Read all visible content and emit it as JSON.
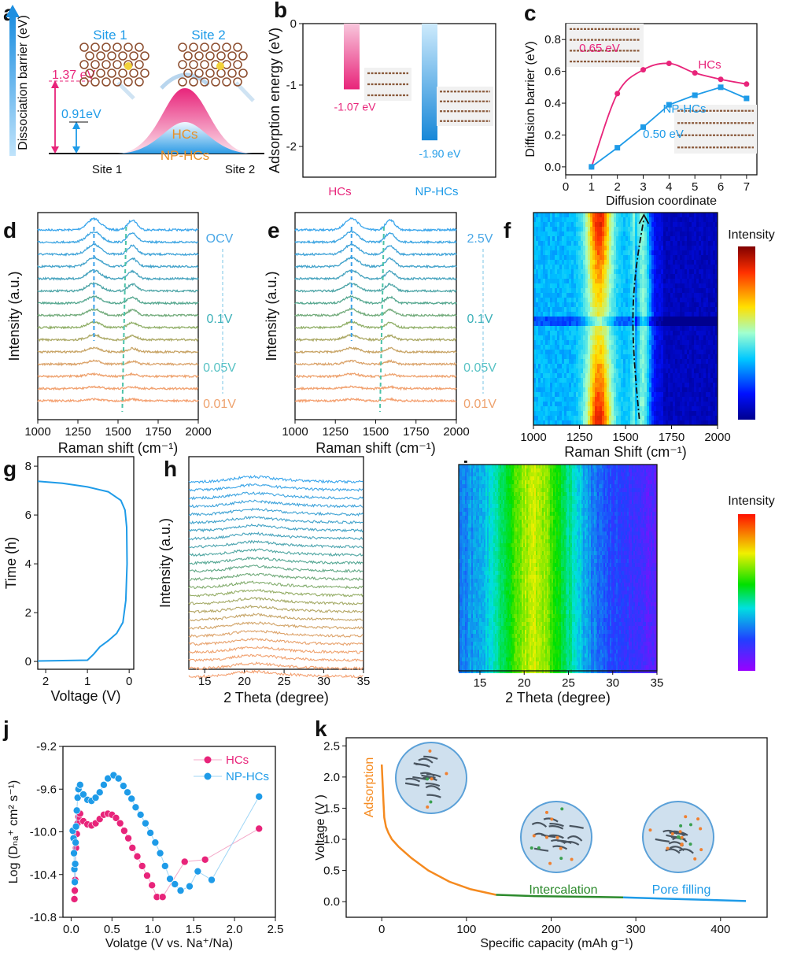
{
  "panel_labels": {
    "a": "a",
    "b": "b",
    "c": "c",
    "d": "d",
    "e": "e",
    "f": "f",
    "g": "g",
    "h": "h",
    "i": "i",
    "j": "j",
    "k": "k"
  },
  "colors": {
    "pink": "#e8247a",
    "blue": "#1e9be8",
    "orange": "#f58a1f",
    "green": "#2c8a2c",
    "hump_text": "#e8912a"
  },
  "panel_a": {
    "ylabel": "Dissociation barrier (eV)",
    "site1_top": "Site 1",
    "site2_top": "Site 2",
    "site1_bottom": "Site 1",
    "site2_bottom": "Site 2",
    "barrier_hcs": "1.37 eV",
    "barrier_nphcs": "0.91eV",
    "hump_hcs": "HCs",
    "hump_nphcs": "NP-HCs"
  },
  "chart_data": [
    {
      "panel": "b",
      "type": "bar",
      "categories": [
        "HCs",
        "NP-HCs"
      ],
      "values": [
        -1.07,
        -1.9
      ],
      "data_labels": [
        "-1.07 eV",
        "-1.90 eV"
      ],
      "ylabel": "Adsorption energy (eV)",
      "ylim": [
        -2.5,
        0
      ],
      "yticks": [
        "0",
        "-1",
        "-2"
      ]
    },
    {
      "panel": "c",
      "type": "line",
      "xlabel": "Diffusion coordinate",
      "ylabel": "Diffusion barrier (eV)",
      "xlim": [
        0,
        7.4
      ],
      "ylim": [
        -0.05,
        0.9
      ],
      "xticks": [
        "0",
        "1",
        "2",
        "3",
        "4",
        "5",
        "6",
        "7"
      ],
      "yticks": [
        "0.0",
        "0.2",
        "0.4",
        "0.6",
        "0.8"
      ],
      "x": [
        1,
        2,
        3,
        4,
        5,
        6,
        7
      ],
      "series": [
        {
          "name": "HCs",
          "values": [
            0.0,
            0.46,
            0.61,
            0.65,
            0.59,
            0.55,
            0.52
          ]
        },
        {
          "name": "NP-HCs",
          "values": [
            0.0,
            0.12,
            0.25,
            0.39,
            0.45,
            0.5,
            0.43
          ]
        }
      ],
      "annotations": [
        "0.65 eV",
        "0.50 eV"
      ]
    },
    {
      "panel": "d",
      "type": "line",
      "xlabel": "Raman shift (cm⁻¹)",
      "ylabel": "Intensity (a.u.)",
      "xlim": [
        1000,
        2000
      ],
      "xticks": [
        "1000",
        "1250",
        "1500",
        "1750",
        "2000"
      ],
      "peaks": [
        1350,
        1590
      ],
      "trace_count": 15,
      "state_labels": [
        "OCV",
        "0.1V",
        "0.05V",
        "0.01V"
      ]
    },
    {
      "panel": "e",
      "type": "line",
      "xlabel": "Raman shift (cm⁻¹)",
      "ylabel": "Intensity (a.u.)",
      "xlim": [
        1000,
        2000
      ],
      "xticks": [
        "1000",
        "1250",
        "1500",
        "1750",
        "2000"
      ],
      "peaks": [
        1350,
        1590
      ],
      "trace_count": 15,
      "state_labels": [
        "2.5V",
        "0.1V",
        "0.05V",
        "0.01V"
      ]
    },
    {
      "panel": "f",
      "type": "heatmap",
      "xlabel": "Raman Shift (cm⁻¹)",
      "xlim": [
        1000,
        2000
      ],
      "xticks": [
        "1000",
        "1250",
        "1500",
        "1750",
        "2000"
      ],
      "colorbar_label": "Intensity",
      "colormap": "jet",
      "high_bands": [
        1350,
        1590
      ]
    },
    {
      "panel": "g",
      "type": "line",
      "xlabel": "Voltage (V)",
      "ylabel": "Time (h)",
      "xlim": [
        2.19,
        -0.11
      ],
      "ylim": [
        -0.32,
        8.39
      ],
      "xticks": [
        "2",
        "1",
        "0"
      ],
      "yticks": [
        "0",
        "2",
        "4",
        "6",
        "8"
      ],
      "x": [
        2.19,
        1.0,
        0.85,
        0.7,
        0.5,
        0.3,
        0.15,
        0.08,
        0.05,
        0.06,
        0.1,
        0.2,
        0.5,
        1.0,
        1.6,
        2.19
      ],
      "values": [
        0.02,
        0.05,
        0.3,
        0.6,
        0.85,
        1.15,
        1.6,
        2.5,
        4.0,
        5.5,
        6.2,
        6.6,
        6.95,
        7.15,
        7.3,
        7.38
      ]
    },
    {
      "panel": "h",
      "type": "line",
      "xlabel": "2 Theta (degree)",
      "ylabel": "Intensity (a.u.)",
      "xlim": [
        13,
        35
      ],
      "xticks": [
        "15",
        "20",
        "25",
        "30",
        "35"
      ],
      "peak": 21,
      "trace_count": 25
    },
    {
      "panel": "i",
      "type": "heatmap",
      "xlabel": "2 Theta (degree)",
      "xlim": [
        12.6,
        35
      ],
      "xticks": [
        "15",
        "20",
        "25",
        "30",
        "35"
      ],
      "colorbar_label": "Intensity",
      "colormap": "rainbow",
      "peak": 21
    },
    {
      "panel": "j",
      "type": "scatter",
      "xlabel": "Volatge (V vs. Na⁺/Na)",
      "ylabel": "Log (Dₙₐ⁺ cm² s⁻¹)",
      "xlim": [
        -0.1,
        2.5
      ],
      "ylim": [
        -10.8,
        -9.2
      ],
      "xticks": [
        "0.0",
        "0.5",
        "1.0",
        "1.5",
        "2.0",
        "2.5"
      ],
      "yticks": [
        "-9.2",
        "-9.6",
        "-10.0",
        "-10.4",
        "-10.8"
      ],
      "legend": "top-right",
      "series": [
        {
          "name": "HCs",
          "x": [
            0.04,
            0.045,
            0.05,
            0.055,
            0.06,
            0.07,
            0.08,
            0.09,
            0.11,
            0.15,
            0.2,
            0.25,
            0.3,
            0.35,
            0.4,
            0.45,
            0.5,
            0.55,
            0.6,
            0.65,
            0.7,
            0.75,
            0.81,
            0.87,
            0.93,
            0.99,
            1.05,
            1.12,
            1.39,
            1.64,
            2.3
          ],
          "y": [
            -10.63,
            -10.55,
            -10.45,
            -10.3,
            -10.15,
            -10.02,
            -9.92,
            -9.86,
            -9.83,
            -9.9,
            -9.93,
            -9.94,
            -9.92,
            -9.88,
            -9.84,
            -9.83,
            -9.84,
            -9.87,
            -9.92,
            -9.99,
            -10.06,
            -10.15,
            -10.23,
            -10.32,
            -10.41,
            -10.5,
            -10.61,
            -10.61,
            -10.28,
            -10.26,
            -9.97
          ]
        },
        {
          "name": "NP-HCs",
          "x": [
            0.02,
            0.03,
            0.035,
            0.04,
            0.045,
            0.05,
            0.055,
            0.06,
            0.07,
            0.08,
            0.09,
            0.11,
            0.15,
            0.2,
            0.25,
            0.3,
            0.35,
            0.4,
            0.45,
            0.52,
            0.58,
            0.64,
            0.69,
            0.74,
            0.79,
            0.85,
            0.91,
            0.97,
            1.03,
            1.09,
            1.15,
            1.21,
            1.27,
            1.34,
            1.45,
            1.55,
            1.72,
            2.3
          ],
          "y": [
            -9.99,
            -10.06,
            -10.2,
            -10.35,
            -10.47,
            -10.3,
            -10.1,
            -9.95,
            -9.8,
            -9.68,
            -9.6,
            -9.56,
            -9.65,
            -9.7,
            -9.71,
            -9.68,
            -9.63,
            -9.56,
            -9.5,
            -9.47,
            -9.5,
            -9.57,
            -9.63,
            -9.69,
            -9.77,
            -9.84,
            -9.92,
            -10.01,
            -10.1,
            -10.2,
            -10.32,
            -10.44,
            -10.49,
            -10.55,
            -10.51,
            -10.37,
            -10.45,
            -9.67
          ]
        }
      ]
    },
    {
      "panel": "k",
      "type": "line",
      "xlabel": "Specific capacity (mAh g⁻¹)",
      "ylabel": "Voltage (V )",
      "xlim": [
        -42,
        455
      ],
      "ylim": [
        -0.25,
        2.63
      ],
      "xticks": [
        "0",
        "100",
        "200",
        "300",
        "400"
      ],
      "yticks": [
        "0.0",
        "0.5",
        "1.0",
        "1.5",
        "2.0",
        "2.5"
      ],
      "series": [
        {
          "name": "Adsorption",
          "x": [
            0,
            1,
            2,
            3,
            5,
            8,
            12,
            20,
            35,
            55,
            80,
            105,
            135
          ],
          "values": [
            2.2,
            1.9,
            1.6,
            1.35,
            1.2,
            1.1,
            1.0,
            0.88,
            0.7,
            0.5,
            0.32,
            0.2,
            0.11
          ]
        },
        {
          "name": "Intercalation",
          "x": [
            135,
            180,
            230,
            285
          ],
          "values": [
            0.11,
            0.09,
            0.08,
            0.07
          ]
        },
        {
          "name": "Pore filling",
          "x": [
            285,
            330,
            380,
            430
          ],
          "values": [
            0.07,
            0.05,
            0.03,
            0.01
          ]
        }
      ]
    }
  ]
}
